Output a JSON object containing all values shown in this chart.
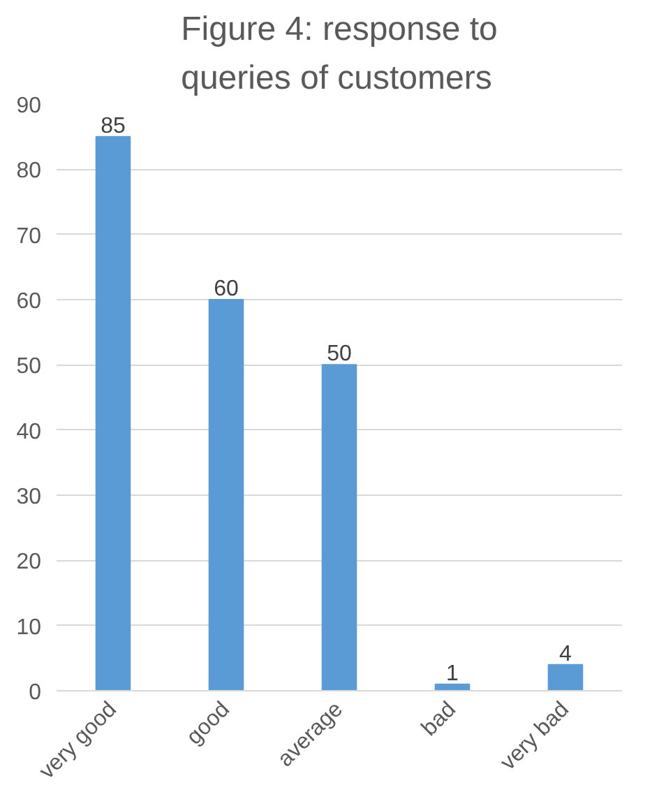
{
  "chart_data": {
    "type": "bar",
    "title": "Figure 4: response to queries of customers",
    "categories": [
      "very good",
      "good",
      "average",
      "bad",
      "very bad"
    ],
    "values": [
      85,
      60,
      50,
      1,
      4
    ],
    "color": "#5b9bd5",
    "ylim": [
      0,
      90
    ],
    "yticks": [
      0,
      10,
      20,
      30,
      40,
      50,
      60,
      70,
      80,
      90
    ],
    "grid": "y",
    "data_labels": true
  }
}
